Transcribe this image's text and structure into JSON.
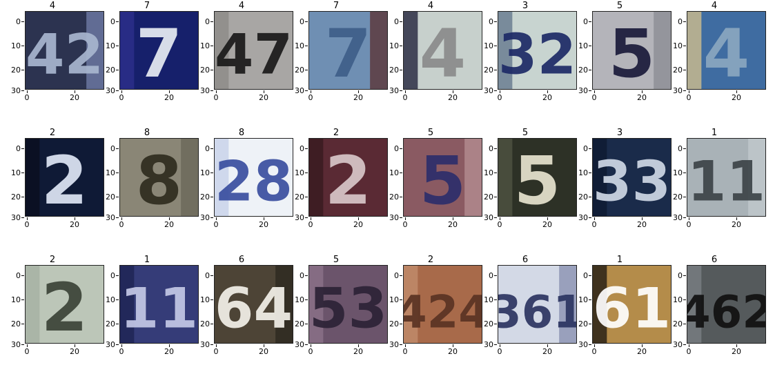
{
  "axes": {
    "y_ticks": [
      "0",
      "10",
      "20",
      "30"
    ],
    "x_ticks": [
      "0",
      "20"
    ]
  },
  "panels": [
    {
      "label": "4",
      "digits": "42",
      "bg": "#2c3350",
      "fg": "#a8b6cf",
      "accent": "#6b77a0"
    },
    {
      "label": "7",
      "digits": "7",
      "bg": "#16206b",
      "fg": "#e8ecf3",
      "accent": "#2b2f8a"
    },
    {
      "label": "4",
      "digits": "47",
      "bg": "#a8a6a4",
      "fg": "#1a1a1a",
      "accent": "#8e8c8a"
    },
    {
      "label": "7",
      "digits": "7",
      "bg": "#6f8fb3",
      "fg": "#3f5f89",
      "accent": "#5d3b3e"
    },
    {
      "label": "4",
      "digits": "4",
      "bg": "#c7d0cc",
      "fg": "#8b8b8b",
      "accent": "#2d2f44"
    },
    {
      "label": "3",
      "digits": "32",
      "bg": "#c8d4d0",
      "fg": "#1d2a66",
      "accent": "#6b7e92"
    },
    {
      "label": "5",
      "digits": "5",
      "bg": "#b4b4ba",
      "fg": "#1a1a3a",
      "accent": "#8e8f96"
    },
    {
      "label": "4",
      "digits": "4",
      "bg": "#3f6ca1",
      "fg": "#8aa7c0",
      "accent": "#c7b98e"
    },
    {
      "label": "2",
      "digits": "2",
      "bg": "#0f1a36",
      "fg": "#dfe7f5",
      "accent": "#0b0f20"
    },
    {
      "label": "8",
      "digits": "8",
      "bg": "#8a8676",
      "fg": "#2f2d1f",
      "accent": "#6c6a5c"
    },
    {
      "label": "8",
      "digits": "28",
      "bg": "#eef2f7",
      "fg": "#3a4fa0",
      "accent": "#c9d3ea"
    },
    {
      "label": "2",
      "digits": "2",
      "bg": "#5a2a34",
      "fg": "#d8c7c9",
      "accent": "#3a1b21"
    },
    {
      "label": "5",
      "digits": "5",
      "bg": "#8a5a62",
      "fg": "#2d2e6b",
      "accent": "#b08a8e"
    },
    {
      "label": "5",
      "digits": "5",
      "bg": "#2d3126",
      "fg": "#e7e3cf",
      "accent": "#4d5141"
    },
    {
      "label": "3",
      "digits": "33",
      "bg": "#1a2b4a",
      "fg": "#cfd8e6",
      "accent": "#0f1b33"
    },
    {
      "label": "1",
      "digits": "11",
      "bg": "#a9b2b7",
      "fg": "#3d4448",
      "accent": "#c0c7cb"
    },
    {
      "label": "2",
      "digits": "2",
      "bg": "#bcc6b8",
      "fg": "#3b4337",
      "accent": "#a7b2a3"
    },
    {
      "label": "1",
      "digits": "11",
      "bg": "#353c78",
      "fg": "#c4c8e6",
      "accent": "#1f2455"
    },
    {
      "label": "6",
      "digits": "64",
      "bg": "#4d4436",
      "fg": "#f3f1ea",
      "accent": "#2f2a21"
    },
    {
      "label": "5",
      "digits": "53",
      "bg": "#6b546b",
      "fg": "#2d2336",
      "accent": "#8a7187"
    },
    {
      "label": "2",
      "digits": "424",
      "bg": "#a86a4a",
      "fg": "#5a3323",
      "accent": "#c08a6a"
    },
    {
      "label": "6",
      "digits": "361",
      "bg": "#d3d9e6",
      "fg": "#2c3561",
      "accent": "#8e95b4"
    },
    {
      "label": "1",
      "digits": "61",
      "bg": "#b48c4a",
      "fg": "#ffffff",
      "accent": "#2a2216"
    },
    {
      "label": "6",
      "digits": "462",
      "bg": "#555a5c",
      "fg": "#111111",
      "accent": "#787d80"
    }
  ]
}
